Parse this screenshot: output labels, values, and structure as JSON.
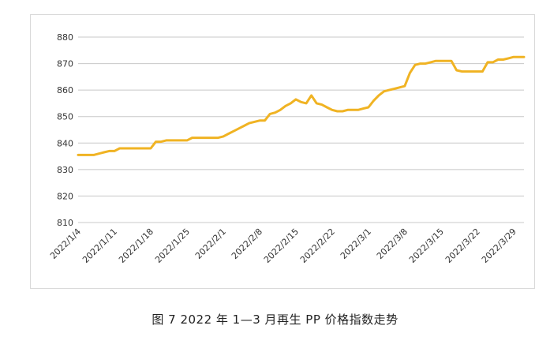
{
  "caption": "图 7 2022 年 1—3 月再生 PP 价格指数走势",
  "chart_data": {
    "type": "line",
    "title": "",
    "xlabel": "",
    "ylabel": "",
    "ylim": [
      810,
      880
    ],
    "yticks": [
      810,
      820,
      830,
      840,
      850,
      860,
      870,
      880
    ],
    "grid": true,
    "line_color": "#f0b323",
    "grid_color": "#c8c8c8",
    "x_tick_labels": [
      "2022/1/4",
      "2022/1/11",
      "2022/1/18",
      "2022/1/25",
      "2022/2/1",
      "2022/2/8",
      "2022/2/15",
      "2022/2/22",
      "2022/3/1",
      "2022/3/8",
      "2022/3/15",
      "2022/3/22",
      "2022/3/29"
    ],
    "x": [
      "2022/1/4",
      "2022/1/5",
      "2022/1/6",
      "2022/1/7",
      "2022/1/8",
      "2022/1/9",
      "2022/1/10",
      "2022/1/11",
      "2022/1/12",
      "2022/1/13",
      "2022/1/14",
      "2022/1/15",
      "2022/1/16",
      "2022/1/17",
      "2022/1/18",
      "2022/1/19",
      "2022/1/20",
      "2022/1/21",
      "2022/1/22",
      "2022/1/23",
      "2022/1/24",
      "2022/1/25",
      "2022/1/26",
      "2022/1/27",
      "2022/1/28",
      "2022/1/29",
      "2022/1/30",
      "2022/1/31",
      "2022/2/1",
      "2022/2/2",
      "2022/2/3",
      "2022/2/4",
      "2022/2/5",
      "2022/2/6",
      "2022/2/7",
      "2022/2/8",
      "2022/2/9",
      "2022/2/10",
      "2022/2/11",
      "2022/2/12",
      "2022/2/13",
      "2022/2/14",
      "2022/2/15",
      "2022/2/16",
      "2022/2/17",
      "2022/2/18",
      "2022/2/19",
      "2022/2/20",
      "2022/2/21",
      "2022/2/22",
      "2022/2/23",
      "2022/2/24",
      "2022/2/25",
      "2022/2/26",
      "2022/2/27",
      "2022/2/28",
      "2022/3/1",
      "2022/3/2",
      "2022/3/3",
      "2022/3/4",
      "2022/3/5",
      "2022/3/6",
      "2022/3/7",
      "2022/3/8",
      "2022/3/9",
      "2022/3/10",
      "2022/3/11",
      "2022/3/12",
      "2022/3/13",
      "2022/3/14",
      "2022/3/15",
      "2022/3/16",
      "2022/3/17",
      "2022/3/18",
      "2022/3/19",
      "2022/3/20",
      "2022/3/21",
      "2022/3/22",
      "2022/3/23",
      "2022/3/24",
      "2022/3/25",
      "2022/3/26",
      "2022/3/27",
      "2022/3/28",
      "2022/3/29",
      "2022/3/30",
      "2022/3/31"
    ],
    "values": [
      835.5,
      835.5,
      835.5,
      835.5,
      836,
      836.5,
      837,
      837,
      838,
      838,
      838,
      838,
      838,
      838,
      838,
      840.5,
      840.5,
      841,
      841,
      841,
      841,
      841,
      842,
      842,
      842,
      842,
      842,
      842,
      842.5,
      843.5,
      844.5,
      845.5,
      846.5,
      847.5,
      848,
      848.5,
      848.5,
      851,
      851.5,
      852.5,
      854,
      855,
      856.5,
      855.5,
      855,
      858,
      855,
      854.5,
      853.5,
      852.5,
      852,
      852,
      852.5,
      852.5,
      852.5,
      853,
      853.5,
      856,
      858,
      859.5,
      860,
      860.5,
      861,
      861.5,
      866.5,
      869.5,
      870,
      870,
      870.5,
      871,
      871,
      871,
      871,
      867.5,
      867,
      867,
      867,
      867,
      867,
      870.5,
      870.5,
      871.5,
      871.5,
      872,
      872.5,
      872.5,
      872.5
    ]
  }
}
